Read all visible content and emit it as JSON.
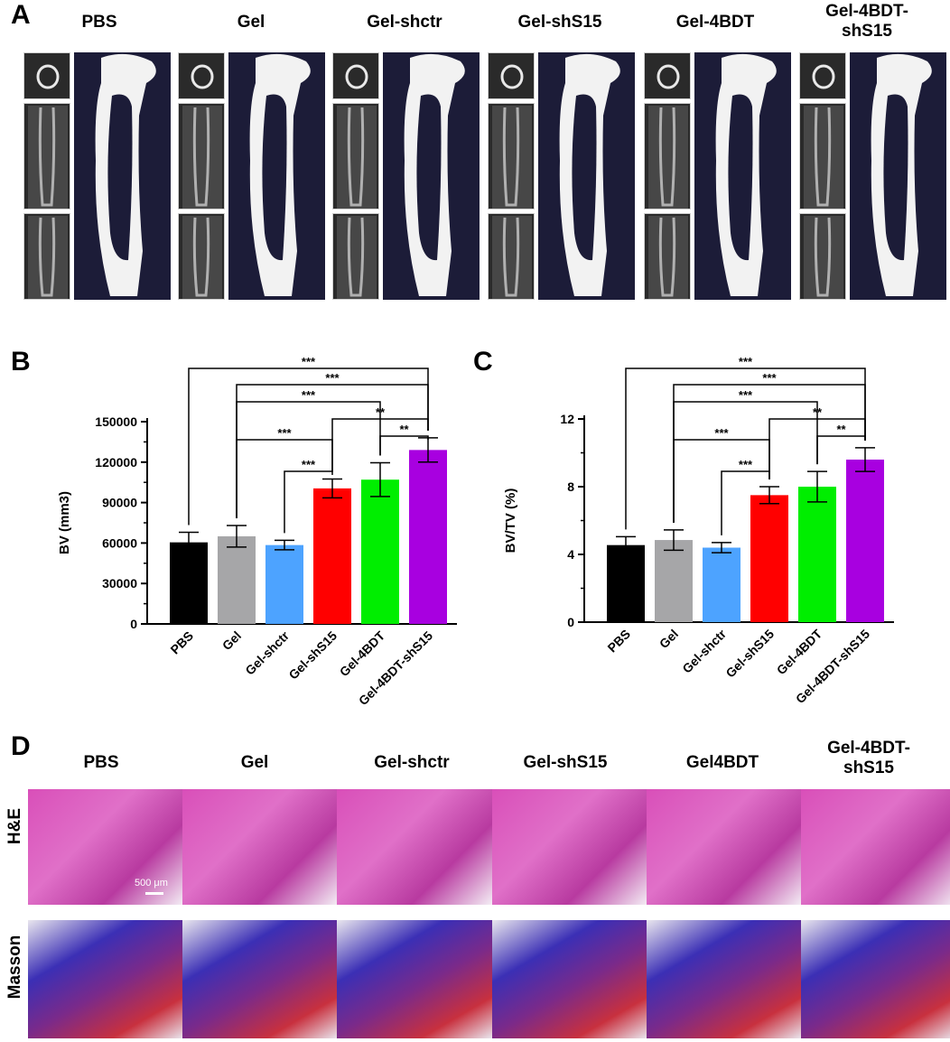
{
  "panels": {
    "a": "A",
    "b": "B",
    "c": "C",
    "d": "D"
  },
  "ct_panel": {
    "groups": [
      {
        "title_lines": [
          "PBS"
        ]
      },
      {
        "title_lines": [
          "Gel"
        ]
      },
      {
        "title_lines": [
          "Gel-shctr"
        ]
      },
      {
        "title_lines": [
          "Gel-shS15"
        ]
      },
      {
        "title_lines": [
          "Gel-4BDT"
        ]
      },
      {
        "title_lines": [
          "Gel-4BDT-",
          "shS15"
        ]
      }
    ]
  },
  "histology_panel": {
    "groups": [
      {
        "title_lines": [
          "PBS"
        ]
      },
      {
        "title_lines": [
          "Gel"
        ]
      },
      {
        "title_lines": [
          "Gel-shctr"
        ]
      },
      {
        "title_lines": [
          "Gel-shS15"
        ]
      },
      {
        "title_lines": [
          "Gel4BDT"
        ]
      },
      {
        "title_lines": [
          "Gel-4BDT-",
          "shS15"
        ]
      }
    ],
    "row_labels": [
      "H&E",
      "Masson"
    ],
    "scale_bar": "500 μm",
    "colors": {
      "he": "#d94fb9",
      "masson_blue": "#3b2fb5",
      "masson_red": "#c8303e"
    }
  },
  "chart_data": [
    {
      "type": "bar",
      "panel": "B",
      "categories": [
        "PBS",
        "Gel",
        "Gel-shctr",
        "Gel-shS15",
        "Gel-4BDT",
        "Gel-4BDT-shS15"
      ],
      "values": [
        60500,
        65000,
        58500,
        100500,
        107000,
        129000
      ],
      "errors": [
        7500,
        8000,
        3500,
        7000,
        12500,
        9000
      ],
      "colors": [
        "#000000",
        "#a6a6a8",
        "#4da3ff",
        "#ff0000",
        "#00ee00",
        "#a800e0"
      ],
      "ylabel": "BV (mm3)",
      "ylim": [
        0,
        150000
      ],
      "yticks": [
        0,
        30000,
        60000,
        90000,
        120000,
        150000
      ],
      "significance": [
        {
          "from": 0,
          "to": 5,
          "label": "***"
        },
        {
          "from": 1,
          "to": 5,
          "label": "***"
        },
        {
          "from": 1,
          "to": 4,
          "label": "***"
        },
        {
          "from": 3,
          "to": 5,
          "label": "**"
        },
        {
          "from": 4,
          "to": 5,
          "label": "**"
        },
        {
          "from": 1,
          "to": 3,
          "label": "***"
        },
        {
          "from": 2,
          "to": 3,
          "label": "***"
        }
      ]
    },
    {
      "type": "bar",
      "panel": "C",
      "categories": [
        "PBS",
        "Gel",
        "Gel-shctr",
        "Gel-shS15",
        "Gel-4BDT",
        "Gel-4BDT-shS15"
      ],
      "values": [
        4.55,
        4.85,
        4.4,
        7.5,
        8.0,
        9.6
      ],
      "errors": [
        0.5,
        0.6,
        0.3,
        0.5,
        0.9,
        0.7
      ],
      "colors": [
        "#000000",
        "#a6a6a8",
        "#4da3ff",
        "#ff0000",
        "#00ee00",
        "#a800e0"
      ],
      "ylabel": "BV/TV (%)",
      "ylim": [
        0,
        12
      ],
      "yticks": [
        0,
        4,
        8,
        12
      ],
      "significance": [
        {
          "from": 0,
          "to": 5,
          "label": "***"
        },
        {
          "from": 1,
          "to": 5,
          "label": "***"
        },
        {
          "from": 1,
          "to": 4,
          "label": "***"
        },
        {
          "from": 3,
          "to": 5,
          "label": "**"
        },
        {
          "from": 4,
          "to": 5,
          "label": "**"
        },
        {
          "from": 1,
          "to": 3,
          "label": "***"
        },
        {
          "from": 2,
          "to": 3,
          "label": "***"
        }
      ]
    }
  ]
}
